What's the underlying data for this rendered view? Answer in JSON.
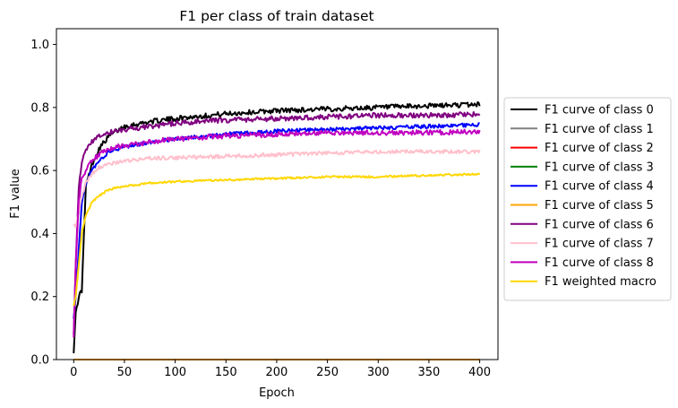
{
  "chart_data": {
    "type": "line",
    "title": "F1 per class of train dataset",
    "xlabel": "Epoch",
    "ylabel": "F1 value",
    "xlim": [
      -17,
      418
    ],
    "ylim": [
      0.0,
      1.05
    ],
    "xticks": [
      0,
      50,
      100,
      150,
      200,
      250,
      300,
      350,
      400
    ],
    "yticks": [
      0.0,
      0.2,
      0.4,
      0.6,
      0.8,
      1.0
    ],
    "ytick_labels": [
      "0.0",
      "0.2",
      "0.4",
      "0.6",
      "0.8",
      "1.0"
    ],
    "grid": false,
    "legend_position": "outside-right",
    "series": [
      {
        "name": "F1 curve of class 0",
        "color": "#000000",
        "x": [
          0,
          2,
          5,
          8,
          12,
          18,
          25,
          35,
          50,
          75,
          100,
          150,
          200,
          250,
          300,
          350,
          400
        ],
        "y": [
          0.02,
          0.15,
          0.2,
          0.22,
          0.55,
          0.62,
          0.67,
          0.71,
          0.74,
          0.755,
          0.765,
          0.78,
          0.79,
          0.795,
          0.8,
          0.805,
          0.81
        ],
        "noise": 0.008
      },
      {
        "name": "F1 curve of class 1",
        "color": "#808080",
        "x": [
          0,
          400
        ],
        "y": [
          0.0,
          0.0
        ],
        "noise": 0
      },
      {
        "name": "F1 curve of class 2",
        "color": "#ff0000",
        "x": [
          0,
          400
        ],
        "y": [
          0.0,
          0.0
        ],
        "noise": 0
      },
      {
        "name": "F1 curve of class 3",
        "color": "#008000",
        "x": [
          0,
          400
        ],
        "y": [
          0.0,
          0.0
        ],
        "noise": 0
      },
      {
        "name": "F1 curve of class 4",
        "color": "#0000ff",
        "x": [
          0,
          2,
          5,
          8,
          12,
          18,
          25,
          35,
          50,
          75,
          100,
          150,
          200,
          250,
          300,
          350,
          400
        ],
        "y": [
          0.13,
          0.2,
          0.35,
          0.5,
          0.56,
          0.6,
          0.63,
          0.66,
          0.675,
          0.69,
          0.7,
          0.715,
          0.725,
          0.73,
          0.735,
          0.74,
          0.745
        ],
        "noise": 0.006
      },
      {
        "name": "F1 curve of class 5",
        "color": "#ffa500",
        "x": [
          0,
          400
        ],
        "y": [
          0.0,
          0.0
        ],
        "noise": 0
      },
      {
        "name": "F1 curve of class 6",
        "color": "#800080",
        "x": [
          0,
          2,
          5,
          8,
          12,
          18,
          25,
          35,
          50,
          75,
          100,
          150,
          200,
          250,
          300,
          350,
          400
        ],
        "y": [
          0.08,
          0.3,
          0.55,
          0.62,
          0.67,
          0.69,
          0.71,
          0.72,
          0.73,
          0.74,
          0.75,
          0.76,
          0.765,
          0.77,
          0.775,
          0.775,
          0.778
        ],
        "noise": 0.008
      },
      {
        "name": "F1 curve of class 7",
        "color": "#ffc0cb",
        "x": [
          0,
          2,
          5,
          8,
          12,
          18,
          25,
          35,
          50,
          75,
          100,
          150,
          200,
          250,
          300,
          350,
          400
        ],
        "y": [
          0.43,
          0.42,
          0.47,
          0.52,
          0.56,
          0.59,
          0.61,
          0.62,
          0.63,
          0.64,
          0.64,
          0.645,
          0.65,
          0.655,
          0.66,
          0.66,
          0.66
        ],
        "noise": 0.006
      },
      {
        "name": "F1 curve of class 8",
        "color": "#c000c0",
        "x": [
          0,
          2,
          5,
          8,
          12,
          18,
          25,
          35,
          50,
          75,
          100,
          150,
          200,
          250,
          300,
          350,
          400
        ],
        "y": [
          0.07,
          0.3,
          0.5,
          0.58,
          0.6,
          0.63,
          0.65,
          0.67,
          0.68,
          0.69,
          0.7,
          0.71,
          0.715,
          0.72,
          0.72,
          0.72,
          0.725
        ],
        "noise": 0.008
      },
      {
        "name": "F1 weighted macro",
        "color": "#ffd700",
        "x": [
          0,
          2,
          5,
          8,
          12,
          18,
          25,
          35,
          50,
          75,
          100,
          150,
          200,
          250,
          300,
          350,
          400
        ],
        "y": [
          0.17,
          0.2,
          0.3,
          0.4,
          0.46,
          0.5,
          0.52,
          0.54,
          0.55,
          0.56,
          0.565,
          0.57,
          0.575,
          0.58,
          0.58,
          0.585,
          0.588
        ],
        "noise": 0.003
      }
    ]
  }
}
